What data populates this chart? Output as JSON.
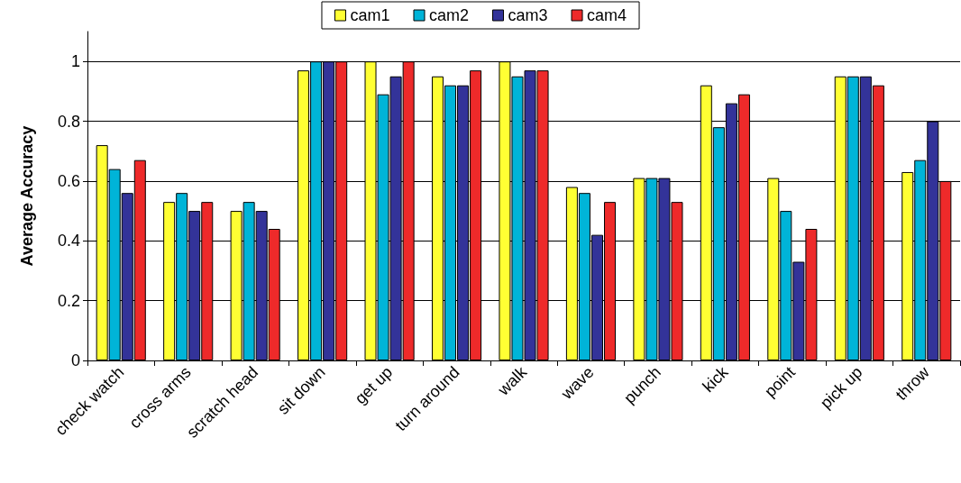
{
  "chart_data": {
    "type": "bar",
    "ylabel": "Average Accuracy",
    "categories": [
      "check watch",
      "cross arms",
      "scratch head",
      "sit down",
      "get up",
      "turn around",
      "walk",
      "wave",
      "punch",
      "kick",
      "point",
      "pick up",
      "throw"
    ],
    "series": [
      {
        "name": "cam1",
        "color": "#ffff33",
        "values": [
          0.72,
          0.53,
          0.5,
          0.97,
          1,
          0.95,
          1,
          0.58,
          0.61,
          0.92,
          0.61,
          0.95,
          0.63
        ]
      },
      {
        "name": "cam2",
        "color": "#00b4d8",
        "values": [
          0.64,
          0.56,
          0.53,
          1,
          0.89,
          0.92,
          0.95,
          0.56,
          0.61,
          0.78,
          0.5,
          0.95,
          0.67
        ]
      },
      {
        "name": "cam3",
        "color": "#333399",
        "values": [
          0.56,
          0.5,
          0.5,
          1,
          0.95,
          0.92,
          0.97,
          0.42,
          0.61,
          0.86,
          0.33,
          0.95,
          0.8
        ]
      },
      {
        "name": "cam4",
        "color": "#ee2a2a",
        "values": [
          0.67,
          0.53,
          0.44,
          1,
          1,
          0.97,
          0.97,
          0.53,
          0.53,
          0.89,
          0.44,
          0.92,
          0.6
        ]
      }
    ],
    "ylim": [
      0,
      1.1
    ],
    "yticks": [
      0,
      0.2,
      0.4,
      0.6,
      0.8,
      1
    ],
    "grid": "y",
    "legend": "top"
  }
}
